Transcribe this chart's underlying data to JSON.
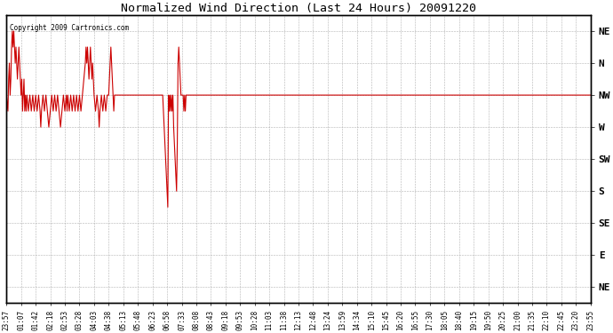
{
  "title": "Normalized Wind Direction (Last 24 Hours) 20091220",
  "copyright": "Copyright 2009 Cartronics.com",
  "line_color": "#cc0000",
  "bg_color": "#ffffff",
  "grid_color": "#aaaaaa",
  "ytick_labels_right": [
    "NE",
    "N",
    "NW",
    "W",
    "SW",
    "S",
    "SE",
    "E",
    "NE"
  ],
  "ytick_values": [
    8,
    7,
    6,
    5,
    4,
    3,
    2,
    1,
    0
  ],
  "ylim": [
    -0.5,
    8.5
  ],
  "xtick_labels": [
    "23:57",
    "01:07",
    "01:42",
    "02:18",
    "02:53",
    "03:28",
    "04:03",
    "04:38",
    "05:13",
    "05:48",
    "06:23",
    "06:58",
    "07:33",
    "08:08",
    "08:43",
    "09:18",
    "09:53",
    "10:28",
    "11:03",
    "11:38",
    "12:13",
    "12:48",
    "13:24",
    "13:59",
    "14:34",
    "15:10",
    "15:45",
    "16:20",
    "16:55",
    "17:30",
    "18:05",
    "18:40",
    "19:15",
    "19:50",
    "20:25",
    "21:00",
    "21:35",
    "22:10",
    "22:45",
    "23:20",
    "23:55"
  ],
  "key_points": [
    [
      0.0,
      6.0
    ],
    [
      0.1,
      5.5
    ],
    [
      0.15,
      6.5
    ],
    [
      0.2,
      7.0
    ],
    [
      0.25,
      6.0
    ],
    [
      0.3,
      6.5
    ],
    [
      0.35,
      7.5
    ],
    [
      0.4,
      8.0
    ],
    [
      0.45,
      7.5
    ],
    [
      0.5,
      8.0
    ],
    [
      0.55,
      7.5
    ],
    [
      0.6,
      7.0
    ],
    [
      0.65,
      7.5
    ],
    [
      0.7,
      7.0
    ],
    [
      0.75,
      6.5
    ],
    [
      0.8,
      7.0
    ],
    [
      0.85,
      7.5
    ],
    [
      0.9,
      7.0
    ],
    [
      0.95,
      6.5
    ],
    [
      1.0,
      6.0
    ],
    [
      1.05,
      6.5
    ],
    [
      1.1,
      5.5
    ],
    [
      1.15,
      6.0
    ],
    [
      1.2,
      6.5
    ],
    [
      1.25,
      5.5
    ],
    [
      1.3,
      6.0
    ],
    [
      1.35,
      5.5
    ],
    [
      1.4,
      6.0
    ],
    [
      1.5,
      5.5
    ],
    [
      1.6,
      6.0
    ],
    [
      1.7,
      5.5
    ],
    [
      1.8,
      6.0
    ],
    [
      1.9,
      5.5
    ],
    [
      2.0,
      6.0
    ],
    [
      2.1,
      5.5
    ],
    [
      2.2,
      6.0
    ],
    [
      2.3,
      5.5
    ],
    [
      2.35,
      5.0
    ],
    [
      2.4,
      5.5
    ],
    [
      2.5,
      6.0
    ],
    [
      2.6,
      5.5
    ],
    [
      2.7,
      6.0
    ],
    [
      2.8,
      5.5
    ],
    [
      2.9,
      5.0
    ],
    [
      3.0,
      5.5
    ],
    [
      3.1,
      6.0
    ],
    [
      3.2,
      5.5
    ],
    [
      3.3,
      6.0
    ],
    [
      3.4,
      5.5
    ],
    [
      3.5,
      6.0
    ],
    [
      3.6,
      5.5
    ],
    [
      3.7,
      5.0
    ],
    [
      3.8,
      5.5
    ],
    [
      3.9,
      6.0
    ],
    [
      4.0,
      5.5
    ],
    [
      4.1,
      6.0
    ],
    [
      4.15,
      5.5
    ],
    [
      4.2,
      6.0
    ],
    [
      4.3,
      5.5
    ],
    [
      4.4,
      6.0
    ],
    [
      4.5,
      5.5
    ],
    [
      4.6,
      6.0
    ],
    [
      4.7,
      5.5
    ],
    [
      4.8,
      6.0
    ],
    [
      4.9,
      5.5
    ],
    [
      5.0,
      6.0
    ],
    [
      5.1,
      5.5
    ],
    [
      5.2,
      6.0
    ],
    [
      5.3,
      6.5
    ],
    [
      5.4,
      7.0
    ],
    [
      5.45,
      7.5
    ],
    [
      5.5,
      7.0
    ],
    [
      5.55,
      7.5
    ],
    [
      5.6,
      7.0
    ],
    [
      5.65,
      6.5
    ],
    [
      5.7,
      7.0
    ],
    [
      5.75,
      7.5
    ],
    [
      5.8,
      7.0
    ],
    [
      5.85,
      6.5
    ],
    [
      5.9,
      7.0
    ],
    [
      5.95,
      6.5
    ],
    [
      6.0,
      6.0
    ],
    [
      6.1,
      5.5
    ],
    [
      6.2,
      6.0
    ],
    [
      6.3,
      5.5
    ],
    [
      6.35,
      5.0
    ],
    [
      6.4,
      5.5
    ],
    [
      6.5,
      6.0
    ],
    [
      6.6,
      5.5
    ],
    [
      6.7,
      6.0
    ],
    [
      6.8,
      5.5
    ],
    [
      6.9,
      6.0
    ],
    [
      7.0,
      6.0
    ],
    [
      7.05,
      6.5
    ],
    [
      7.1,
      7.0
    ],
    [
      7.15,
      7.5
    ],
    [
      7.2,
      7.0
    ],
    [
      7.25,
      6.5
    ],
    [
      7.3,
      6.0
    ],
    [
      7.35,
      5.5
    ],
    [
      7.4,
      6.0
    ],
    [
      7.5,
      6.0
    ],
    [
      7.6,
      6.0
    ],
    [
      7.7,
      6.0
    ],
    [
      7.8,
      6.0
    ],
    [
      7.9,
      6.0
    ],
    [
      8.0,
      6.0
    ],
    [
      8.1,
      6.0
    ],
    [
      8.2,
      6.0
    ],
    [
      8.3,
      6.0
    ],
    [
      8.4,
      6.0
    ],
    [
      8.5,
      6.0
    ],
    [
      8.6,
      6.0
    ],
    [
      8.7,
      6.0
    ],
    [
      8.8,
      6.0
    ],
    [
      8.9,
      6.0
    ],
    [
      9.0,
      6.0
    ],
    [
      9.1,
      6.0
    ],
    [
      9.2,
      6.0
    ],
    [
      9.3,
      6.0
    ],
    [
      9.4,
      6.0
    ],
    [
      9.5,
      6.0
    ],
    [
      9.6,
      6.0
    ],
    [
      9.7,
      6.0
    ],
    [
      9.8,
      6.0
    ],
    [
      9.9,
      6.0
    ],
    [
      10.0,
      6.0
    ],
    [
      10.1,
      6.0
    ],
    [
      10.2,
      6.0
    ],
    [
      10.3,
      6.0
    ],
    [
      10.4,
      6.0
    ],
    [
      10.5,
      6.0
    ],
    [
      10.6,
      6.0
    ],
    [
      10.65,
      6.0
    ],
    [
      10.7,
      6.0
    ],
    [
      10.75,
      5.5
    ],
    [
      10.8,
      5.0
    ],
    [
      10.85,
      4.5
    ],
    [
      10.9,
      4.0
    ],
    [
      10.95,
      3.5
    ],
    [
      11.0,
      3.0
    ],
    [
      11.05,
      2.5
    ],
    [
      11.1,
      6.0
    ],
    [
      11.15,
      5.5
    ],
    [
      11.2,
      6.0
    ],
    [
      11.25,
      5.5
    ],
    [
      11.3,
      6.0
    ],
    [
      11.35,
      5.5
    ],
    [
      11.4,
      6.0
    ],
    [
      11.45,
      5.0
    ],
    [
      11.5,
      4.5
    ],
    [
      11.55,
      4.0
    ],
    [
      11.6,
      3.5
    ],
    [
      11.65,
      3.0
    ],
    [
      11.7,
      4.5
    ],
    [
      11.75,
      7.0
    ],
    [
      11.8,
      7.5
    ],
    [
      11.85,
      7.0
    ],
    [
      11.9,
      6.5
    ],
    [
      11.95,
      6.0
    ],
    [
      12.0,
      6.0
    ],
    [
      12.1,
      6.0
    ],
    [
      12.15,
      5.5
    ],
    [
      12.2,
      6.0
    ],
    [
      12.25,
      5.5
    ],
    [
      12.3,
      6.0
    ],
    [
      12.35,
      6.0
    ],
    [
      12.4,
      6.0
    ],
    [
      12.5,
      6.0
    ],
    [
      12.6,
      6.0
    ],
    [
      12.7,
      6.0
    ],
    [
      12.8,
      6.0
    ],
    [
      12.9,
      6.0
    ],
    [
      13.0,
      6.0
    ],
    [
      13.1,
      6.0
    ],
    [
      13.2,
      6.0
    ],
    [
      13.3,
      6.0
    ],
    [
      13.4,
      6.0
    ],
    [
      13.5,
      6.0
    ],
    [
      13.6,
      6.0
    ],
    [
      13.7,
      6.0
    ],
    [
      13.8,
      6.0
    ],
    [
      13.9,
      6.0
    ],
    [
      14.0,
      6.0
    ],
    [
      15.0,
      6.0
    ],
    [
      16.0,
      6.0
    ],
    [
      17.0,
      6.0
    ],
    [
      18.0,
      6.0
    ],
    [
      19.0,
      6.0
    ],
    [
      20.0,
      6.0
    ],
    [
      21.0,
      6.0
    ],
    [
      22.0,
      6.0
    ],
    [
      23.0,
      6.0
    ],
    [
      24.0,
      6.0
    ],
    [
      25.0,
      6.0
    ],
    [
      26.0,
      6.0
    ],
    [
      27.0,
      6.0
    ],
    [
      28.0,
      6.0
    ],
    [
      29.0,
      6.0
    ],
    [
      30.0,
      6.0
    ],
    [
      31.0,
      6.0
    ],
    [
      32.0,
      6.0
    ],
    [
      33.0,
      6.0
    ],
    [
      34.0,
      6.0
    ],
    [
      35.0,
      6.0
    ],
    [
      36.0,
      6.0
    ],
    [
      37.0,
      6.0
    ],
    [
      38.0,
      6.0
    ],
    [
      39.0,
      6.0
    ],
    [
      40.0,
      6.0
    ]
  ]
}
